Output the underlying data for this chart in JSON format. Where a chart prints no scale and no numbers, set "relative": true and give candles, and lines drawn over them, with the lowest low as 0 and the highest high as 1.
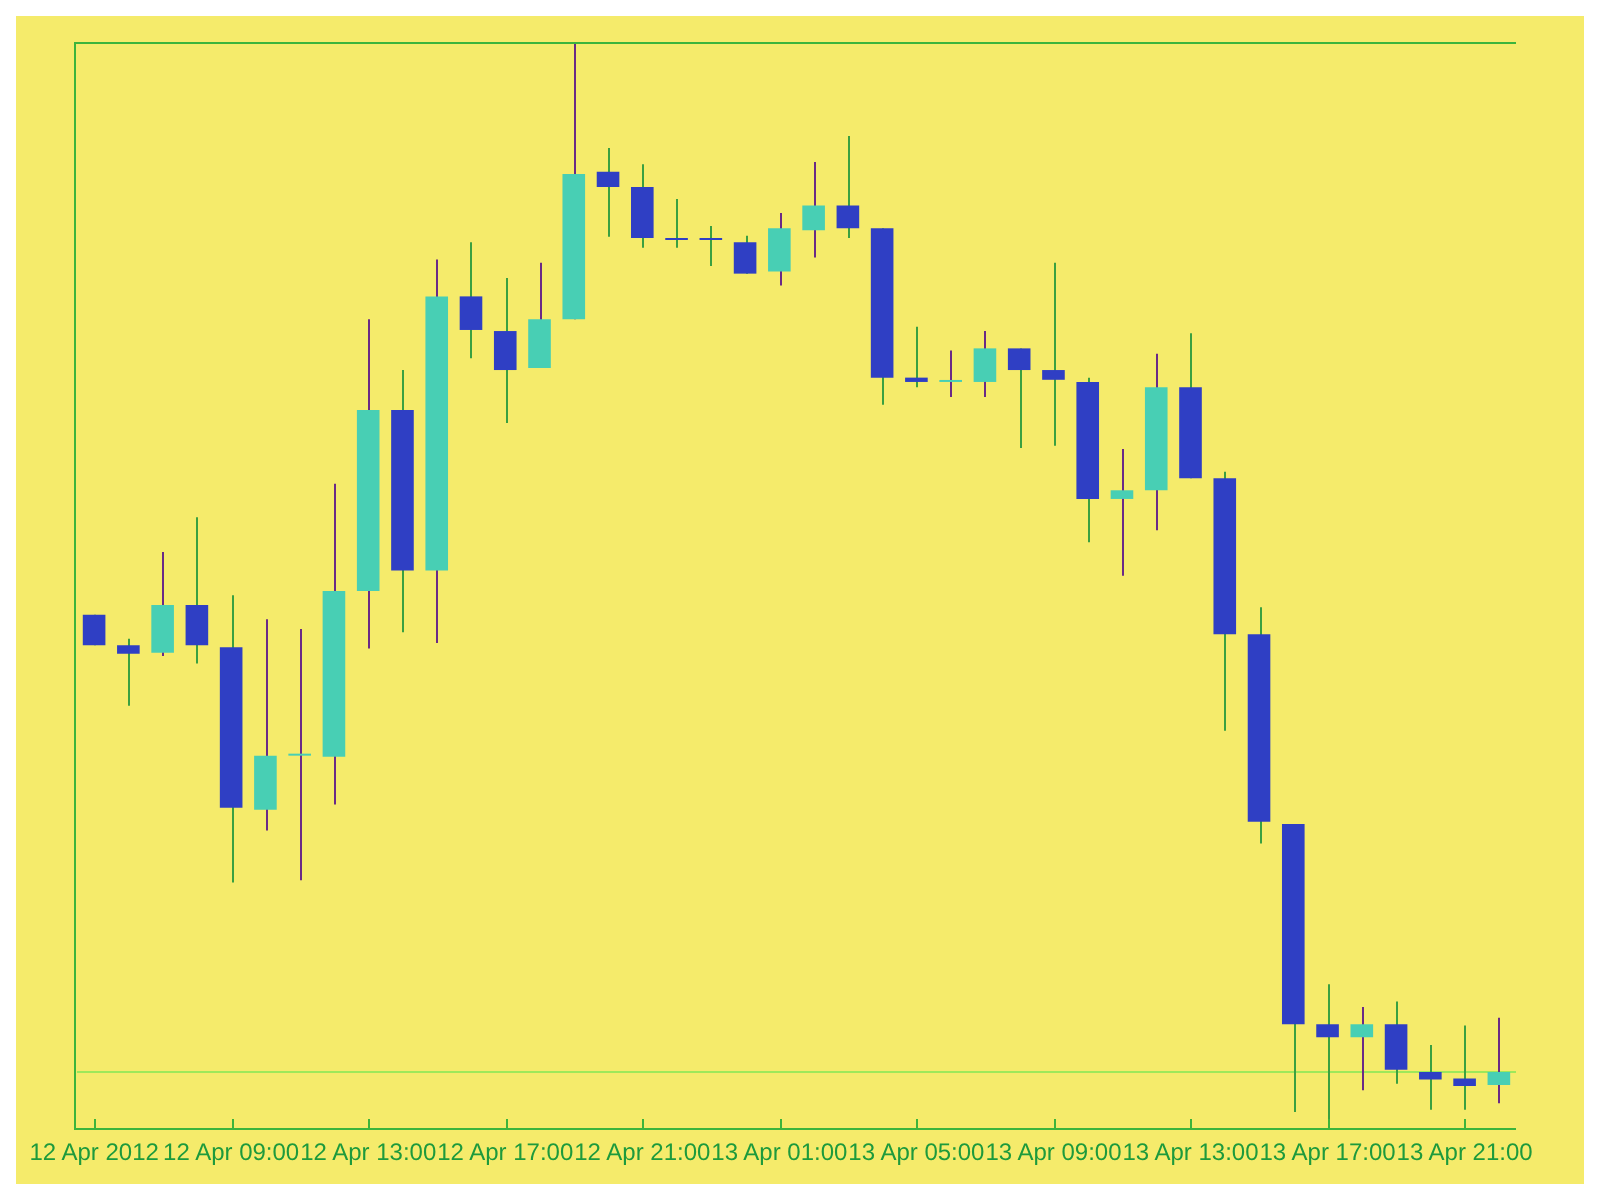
{
  "chart_data": {
    "type": "candlestick",
    "relative": true,
    "tick_labels": "x",
    "categories": [
      "12 Apr 2012",
      null,
      null,
      null,
      "12 Apr 09:00",
      null,
      null,
      null,
      "12 Apr 13:00",
      null,
      null,
      null,
      "12 Apr 17:00",
      null,
      null,
      null,
      "12 Apr 21:00",
      null,
      null,
      null,
      "13 Apr 01:00",
      null,
      null,
      null,
      "13 Apr 05:00",
      null,
      null,
      null,
      "13 Apr 09:00",
      null,
      null,
      null,
      "13 Apr 13:00",
      null,
      null,
      null,
      "13 Apr 17:00",
      null,
      null,
      null,
      "13 Apr 21:00",
      null
    ],
    "ohlc": [
      [
        0.473,
        0.473,
        0.445,
        0.445
      ],
      [
        0.445,
        0.451,
        0.389,
        0.437
      ],
      [
        0.438,
        0.531,
        0.435,
        0.482
      ],
      [
        0.482,
        0.563,
        0.428,
        0.445
      ],
      [
        0.443,
        0.491,
        0.226,
        0.295
      ],
      [
        0.293,
        0.469,
        0.274,
        0.343
      ],
      [
        0.343,
        0.46,
        0.228,
        0.343
      ],
      [
        0.342,
        0.594,
        0.298,
        0.495
      ],
      [
        0.495,
        0.746,
        0.442,
        0.662
      ],
      [
        0.662,
        0.699,
        0.457,
        0.514
      ],
      [
        0.514,
        0.801,
        0.447,
        0.767
      ],
      [
        0.767,
        0.817,
        0.71,
        0.736
      ],
      [
        0.735,
        0.784,
        0.65,
        0.699
      ],
      [
        0.701,
        0.798,
        0.701,
        0.746
      ],
      [
        0.746,
        1.0,
        0.746,
        0.88
      ],
      [
        0.882,
        0.904,
        0.822,
        0.868
      ],
      [
        0.868,
        0.889,
        0.812,
        0.821
      ],
      [
        0.821,
        0.857,
        0.812,
        0.819
      ],
      [
        0.82,
        0.832,
        0.795,
        0.819
      ],
      [
        0.817,
        0.823,
        0.788,
        0.788
      ],
      [
        0.79,
        0.844,
        0.777,
        0.83
      ],
      [
        0.828,
        0.891,
        0.803,
        0.851
      ],
      [
        0.851,
        0.915,
        0.821,
        0.83
      ],
      [
        0.83,
        0.83,
        0.667,
        0.692
      ],
      [
        0.692,
        0.739,
        0.683,
        0.688
      ],
      [
        0.688,
        0.717,
        0.674,
        0.688
      ],
      [
        0.688,
        0.735,
        0.674,
        0.719
      ],
      [
        0.719,
        0.719,
        0.627,
        0.699
      ],
      [
        0.699,
        0.798,
        0.629,
        0.69
      ],
      [
        0.688,
        0.692,
        0.54,
        0.58
      ],
      [
        0.58,
        0.626,
        0.509,
        0.588
      ],
      [
        0.588,
        0.714,
        0.551,
        0.683
      ],
      [
        0.683,
        0.733,
        0.599,
        0.599
      ],
      [
        0.599,
        0.605,
        0.366,
        0.455
      ],
      [
        0.455,
        0.48,
        0.262,
        0.282
      ],
      [
        0.28,
        0.28,
        0.014,
        0.095
      ],
      [
        0.095,
        0.132,
        0,
        0.083
      ],
      [
        0.083,
        0.111,
        0.034,
        0.095
      ],
      [
        0.095,
        0.116,
        0.04,
        0.053
      ],
      [
        0.051,
        0.076,
        0.016,
        0.044
      ],
      [
        0.045,
        0.094,
        0.016,
        0.038
      ],
      [
        0.039,
        0.101,
        0.022,
        0.051
      ]
    ],
    "colors": [
      "#2f3fc4",
      "#2f3fc4",
      "#48cfb4",
      "#2f3fc4",
      "#2f3fc4",
      "#48cfb4",
      "#48cfb4",
      "#48cfb4",
      "#48cfb4",
      "#2f3fc4",
      "#48cfb4",
      "#2f3fc4",
      "#2f3fc4",
      "#48cfb4",
      "#48cfb4",
      "#2f3fc4",
      "#2f3fc4",
      "#2f3fc4",
      "#2f3fc4",
      "#2f3fc4",
      "#48cfb4",
      "#48cfb4",
      "#2f3fc4",
      "#2f3fc4",
      "#2f3fc4",
      "#48cfb4",
      "#48cfb4",
      "#2f3fc4",
      "#2f3fc4",
      "#2f3fc4",
      "#48cfb4",
      "#48cfb4",
      "#2f3fc4",
      "#2f3fc4",
      "#2f3fc4",
      "#2f3fc4",
      "#2f3fc4",
      "#48cfb4",
      "#2f3fc4",
      "#2f3fc4",
      "#2f3fc4",
      "#48cfb4"
    ],
    "ref_lines": [
      {
        "axis": "y",
        "value": 0.051,
        "color": "#9ee85a"
      }
    ]
  }
}
